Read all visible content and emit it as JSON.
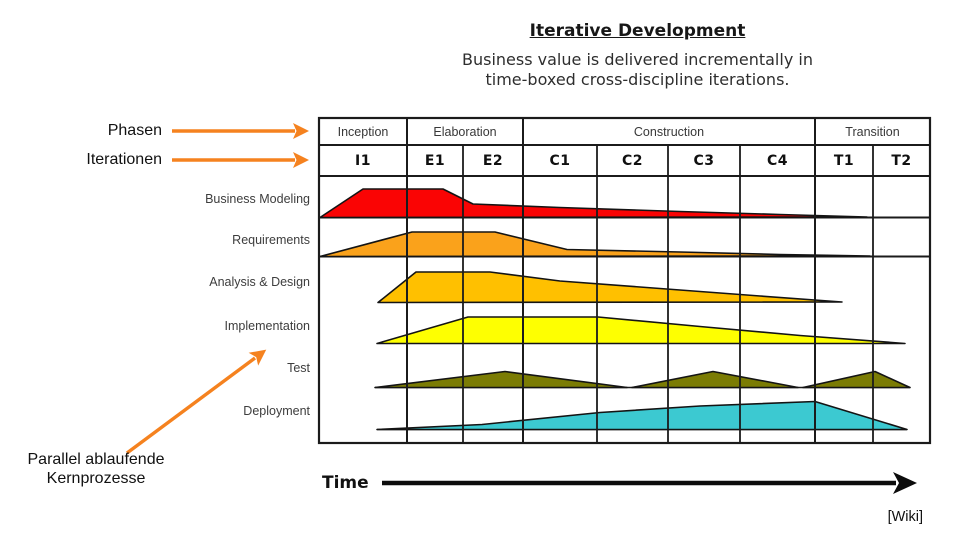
{
  "header": {
    "title": "Iterative Development",
    "subtitle_line1": "Business value is delivered incrementally in",
    "subtitle_line2": "time-boxed cross-discipline iterations."
  },
  "annotations": {
    "phases_label": "Phasen",
    "iterations_label": "Iterationen",
    "parallel_line1": "Parallel ablaufende",
    "parallel_line2": "Kernprozesse",
    "arrow_color": "#F5821F"
  },
  "chart": {
    "phases": [
      {
        "label": "Inception",
        "iterations": [
          "I1"
        ]
      },
      {
        "label": "Elaboration",
        "iterations": [
          "E1",
          "E2"
        ]
      },
      {
        "label": "Construction",
        "iterations": [
          "C1",
          "C2",
          "C3",
          "C4"
        ]
      },
      {
        "label": "Transition",
        "iterations": [
          "T1",
          "T2"
        ]
      }
    ],
    "rows": [
      {
        "id": "business-modeling",
        "label": "Business Modeling",
        "color": "#FA0404",
        "shapes": [
          "320,217.5 363,189 443,189 473,204 560,207.5 680,211.5 780,214.5 867,217"
        ]
      },
      {
        "id": "requirements",
        "label": "Requirements",
        "color": "#FAA21B",
        "shapes": [
          "320,256.5 412,232 495,232 567,249.5 680,252 780,254.5 870,256"
        ]
      },
      {
        "id": "analysis-design",
        "label": "Analysis & Design",
        "color": "#FFC000",
        "shapes": [
          "378,302.5 416,272 490,272 560,281 660,288.5 760,296 842,302"
        ]
      },
      {
        "id": "implementation",
        "label": "Implementation",
        "color": "#FEFF01",
        "shapes": [
          "377,343.5 468,317 598,317 700,326.5 800,335.5 905,343.5"
        ]
      },
      {
        "id": "test",
        "label": "Test",
        "color": "#7B7C04",
        "shapes": [
          "375,387.5 505,371.5 627,387.5",
          "632,387.5 713,371.5 798,387.5",
          "803,387.5 875,371.5 910,387.5"
        ]
      },
      {
        "id": "deployment",
        "label": "Deployment",
        "color": "#3CC9D1",
        "shapes": [
          "377,429.5 482,424.5 600,412.5 700,406 815,401.5 907,429.5"
        ]
      }
    ]
  },
  "footer": {
    "time_label": "Time",
    "attribution": "[Wiki]"
  }
}
